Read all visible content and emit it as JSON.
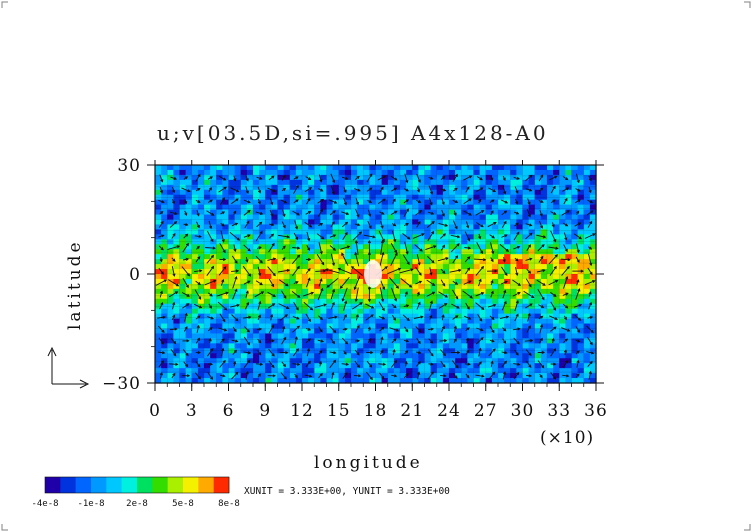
{
  "chart_data": {
    "type": "heatmap",
    "title": "u;v[03.5D,si=.995] A4x128-A0",
    "xlabel": "longitude",
    "ylabel": "latitude",
    "x_multiplier": "(×10)",
    "xlim": [
      0,
      36
    ],
    "ylim": [
      -30,
      30
    ],
    "x_ticks": [
      "0",
      "3",
      "6",
      "9",
      "12",
      "15",
      "18",
      "21",
      "24",
      "27",
      "30",
      "33",
      "36"
    ],
    "y_ticks": [
      "30",
      "0",
      "−30"
    ],
    "colorbar": {
      "labels": [
        "-4e-8",
        "-1e-8",
        "2e-8",
        "5e-8",
        "8e-8"
      ],
      "min": -4e-08,
      "max": 8e-08,
      "n_levels": 12,
      "colors": [
        "#1f00a8",
        "#0033dd",
        "#0066ff",
        "#0099ff",
        "#00c8ff",
        "#00f0e0",
        "#00e060",
        "#33dd00",
        "#aaee00",
        "#f4f000",
        "#ffaa00",
        "#ff2a00"
      ]
    },
    "unit_note": "XUNIT = 3.333E+00, YUNIT = 3.333E+00",
    "vector_field": "u;v wind vectors overlaid",
    "equatorial_band": "green/yellow shading between about 10S and 10N across all longitudes",
    "features": [
      {
        "lon": 17.5,
        "lat": 0,
        "note": "strong divergent vectors with red/white maxima"
      },
      {
        "lon": 29,
        "lat": 4,
        "note": "red maximum"
      },
      {
        "lon": 33,
        "lat": 4,
        "note": "red maximum"
      }
    ]
  }
}
